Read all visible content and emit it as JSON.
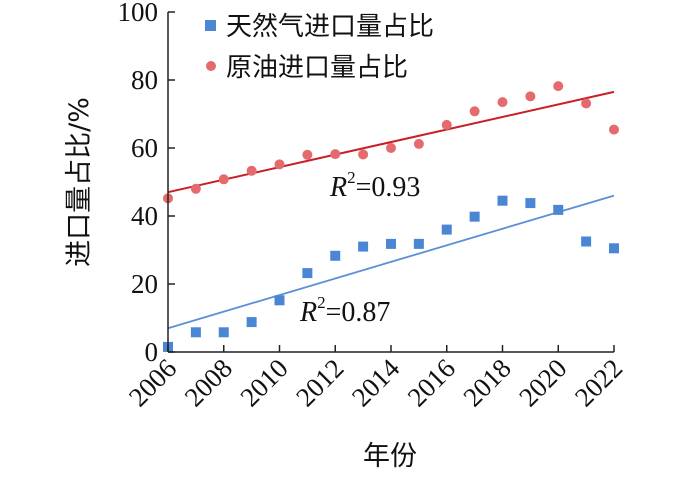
{
  "chart_data": {
    "type": "scatter",
    "xlabel": "年份",
    "ylabel": "进口量占比/%",
    "xlim": [
      2006,
      2022
    ],
    "ylim": [
      0,
      100
    ],
    "x_ticks": [
      "2006",
      "2008",
      "2010",
      "2012",
      "2014",
      "2016",
      "2018",
      "2020",
      "2022"
    ],
    "y_ticks": [
      "0",
      "20",
      "40",
      "60",
      "80",
      "100"
    ],
    "legend_position": "top-left",
    "series": [
      {
        "name": "天然气进口量占比",
        "color": "#4a86d4",
        "marker": "square",
        "x": [
          2006,
          2007,
          2008,
          2009,
          2010,
          2011,
          2012,
          2013,
          2014,
          2015,
          2016,
          2017,
          2018,
          2019,
          2020,
          2021,
          2022
        ],
        "y": [
          1.5,
          5.8,
          5.8,
          8.8,
          15.2,
          23.2,
          28.3,
          31,
          31.8,
          31.8,
          36,
          39.8,
          44.5,
          43.8,
          41.8,
          32.5,
          30.5
        ],
        "trend": {
          "y_start": 7,
          "y_end": 46,
          "r2_label": "R",
          "r2_sup": "2",
          "r2_value": "=0.87",
          "color": "#5b8fd6"
        }
      },
      {
        "name": "原油进口量占比",
        "color": "#e56a6e",
        "marker": "circle",
        "x": [
          2006,
          2007,
          2008,
          2009,
          2010,
          2011,
          2012,
          2013,
          2014,
          2015,
          2016,
          2017,
          2018,
          2019,
          2020,
          2021,
          2022
        ],
        "y": [
          45.2,
          48,
          50.8,
          53.3,
          55.2,
          58,
          58.2,
          58.1,
          60,
          61.2,
          66.8,
          70.8,
          73.5,
          75.2,
          78.2,
          73.1,
          65.4
        ],
        "trend": {
          "y_start": 47,
          "y_end": 76.5,
          "r2_label": "R",
          "r2_sup": "2",
          "r2_value": "=0.93",
          "color": "#c81e24"
        }
      }
    ]
  }
}
